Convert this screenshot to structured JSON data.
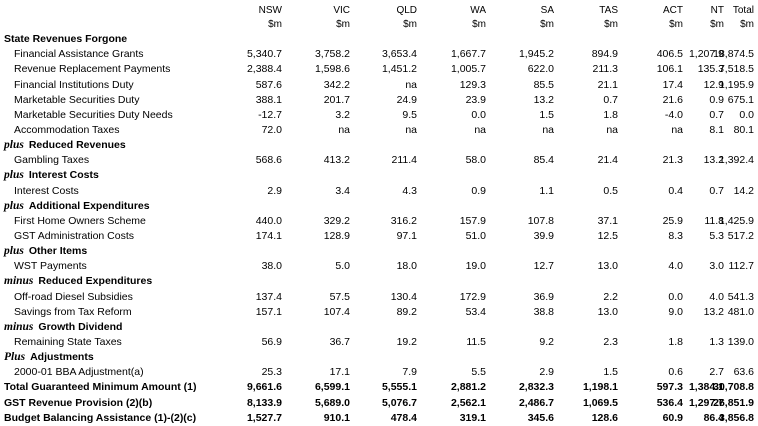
{
  "columns": [
    {
      "name": "NSW",
      "unit": "$m"
    },
    {
      "name": "VIC",
      "unit": "$m"
    },
    {
      "name": "QLD",
      "unit": "$m"
    },
    {
      "name": "WA",
      "unit": "$m"
    },
    {
      "name": "SA",
      "unit": "$m"
    },
    {
      "name": "TAS",
      "unit": "$m"
    },
    {
      "name": "ACT",
      "unit": "$m"
    },
    {
      "name": "NT",
      "unit": "$m"
    },
    {
      "name": "Total",
      "unit": "$m"
    }
  ],
  "rows": [
    {
      "type": "section",
      "prefix": "",
      "label": "State Revenues Forgone"
    },
    {
      "type": "item",
      "label": "Financial Assistance Grants",
      "values": [
        "5,340.7",
        "3,758.2",
        "3,653.4",
        "1,667.7",
        "1,945.2",
        "894.9",
        "406.5",
        "1,207.9",
        "18,874.5"
      ]
    },
    {
      "type": "item",
      "label": "Revenue Replacement Payments",
      "values": [
        "2,388.4",
        "1,598.6",
        "1,451.2",
        "1,005.7",
        "622.0",
        "211.3",
        "106.1",
        "135.3",
        "7,518.5"
      ]
    },
    {
      "type": "item",
      "label": "Financial Institutions Duty",
      "values": [
        "587.6",
        "342.2",
        "na",
        "129.3",
        "85.5",
        "21.1",
        "17.4",
        "12.9",
        "1,195.9"
      ]
    },
    {
      "type": "item",
      "label": "Marketable Securities Duty",
      "values": [
        "388.1",
        "201.7",
        "24.9",
        "23.9",
        "13.2",
        "0.7",
        "21.6",
        "0.9",
        "675.1"
      ]
    },
    {
      "type": "item",
      "label": "Marketable Securities Duty Needs",
      "values": [
        "-12.7",
        "3.2",
        "9.5",
        "0.0",
        "1.5",
        "1.8",
        "-4.0",
        "0.7",
        "0.0"
      ]
    },
    {
      "type": "item",
      "label": "Accommodation Taxes",
      "values": [
        "72.0",
        "na",
        "na",
        "na",
        "na",
        "na",
        "na",
        "8.1",
        "80.1"
      ]
    },
    {
      "type": "section",
      "prefix": "plus",
      "label": "Reduced Revenues"
    },
    {
      "type": "item",
      "label": "Gambling Taxes",
      "values": [
        "568.6",
        "413.2",
        "211.4",
        "58.0",
        "85.4",
        "21.4",
        "21.3",
        "13.2",
        "1,392.4"
      ]
    },
    {
      "type": "section",
      "prefix": "plus",
      "label": "Interest Costs"
    },
    {
      "type": "item",
      "label": "Interest Costs",
      "values": [
        "2.9",
        "3.4",
        "4.3",
        "0.9",
        "1.1",
        "0.5",
        "0.4",
        "0.7",
        "14.2"
      ]
    },
    {
      "type": "section",
      "prefix": "plus",
      "label": "Additional Expenditures"
    },
    {
      "type": "item",
      "label": "First Home Owners Scheme",
      "values": [
        "440.0",
        "329.2",
        "316.2",
        "157.9",
        "107.8",
        "37.1",
        "25.9",
        "11.8",
        "1,425.9"
      ]
    },
    {
      "type": "item",
      "label": "GST Administration Costs",
      "values": [
        "174.1",
        "128.9",
        "97.1",
        "51.0",
        "39.9",
        "12.5",
        "8.3",
        "5.3",
        "517.2"
      ]
    },
    {
      "type": "section",
      "prefix": "plus",
      "label": "Other Items"
    },
    {
      "type": "item",
      "label": "WST Payments",
      "values": [
        "38.0",
        "5.0",
        "18.0",
        "19.0",
        "12.7",
        "13.0",
        "4.0",
        "3.0",
        "112.7"
      ]
    },
    {
      "type": "section",
      "prefix": "minus",
      "label": "Reduced Expenditures"
    },
    {
      "type": "item",
      "label": "Off-road Diesel Subsidies",
      "values": [
        "137.4",
        "57.5",
        "130.4",
        "172.9",
        "36.9",
        "2.2",
        "0.0",
        "4.0",
        "541.3"
      ]
    },
    {
      "type": "item",
      "label": "Savings from Tax Reform",
      "values": [
        "157.1",
        "107.4",
        "89.2",
        "53.4",
        "38.8",
        "13.0",
        "9.0",
        "13.2",
        "481.0"
      ]
    },
    {
      "type": "section",
      "prefix": "minus",
      "label": "Growth Dividend"
    },
    {
      "type": "item",
      "label": "Remaining State Taxes",
      "values": [
        "56.9",
        "36.7",
        "19.2",
        "11.5",
        "9.2",
        "2.3",
        "1.8",
        "1.3",
        "139.0"
      ]
    },
    {
      "type": "section",
      "prefix": "Plus",
      "label": "Adjustments"
    },
    {
      "type": "item",
      "label": "2000-01 BBA Adjustment(a)",
      "values": [
        "25.3",
        "17.1",
        "7.9",
        "5.5",
        "2.9",
        "1.5",
        "0.6",
        "2.7",
        "63.6"
      ]
    },
    {
      "type": "total",
      "label": "Total Guaranteed Minimum Amount (1)",
      "values": [
        "9,661.6",
        "6,599.1",
        "5,555.1",
        "2,881.2",
        "2,832.3",
        "1,198.1",
        "597.3",
        "1,384.1",
        "30,708.8"
      ]
    },
    {
      "type": "total",
      "label": "GST Revenue Provision (2)(b)",
      "values": [
        "8,133.9",
        "5,689.0",
        "5,076.7",
        "2,562.1",
        "2,486.7",
        "1,069.5",
        "536.4",
        "1,297.7",
        "26,851.9"
      ]
    },
    {
      "type": "total",
      "label": "Budget Balancing Assistance (1)-(2)(c)",
      "values": [
        "1,527.7",
        "910.1",
        "478.4",
        "319.1",
        "345.6",
        "128.6",
        "60.9",
        "86.4",
        "3,856.8"
      ]
    }
  ]
}
